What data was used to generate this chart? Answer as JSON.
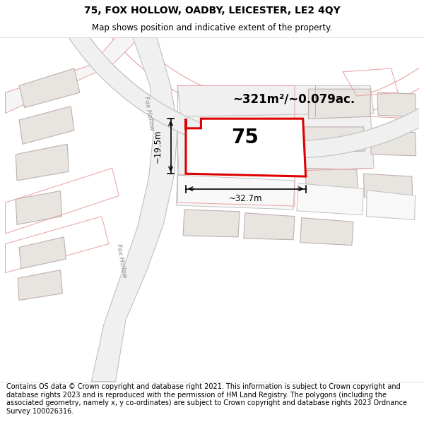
{
  "title_line1": "75, FOX HOLLOW, OADBY, LEICESTER, LE2 4QY",
  "title_line2": "Map shows position and indicative extent of the property.",
  "footer_text": "Contains OS data © Crown copyright and database right 2021. This information is subject to Crown copyright and database rights 2023 and is reproduced with the permission of HM Land Registry. The polygons (including the associated geometry, namely x, y co-ordinates) are subject to Crown copyright and database rights 2023 Ordnance Survey 100026316.",
  "map_bg": "#ffffff",
  "road_stroke": "#e8a0a0",
  "road_fill": "#fde8e8",
  "parcel_stroke": "#e8a0a0",
  "parcel_fill": "none",
  "bld_stroke": "#c0b0b0",
  "bld_fill": "#e8e4e0",
  "curved_road_stroke": "#c0c0c0",
  "curved_road_fill": "#ffffff",
  "highlight_color": "#dd0000",
  "highlight_fill": "#ffffff",
  "area_label": "~321m²/~0.079ac.",
  "plot_number": "75",
  "dim_width": "~32.7m",
  "dim_height": "~19.5m",
  "title_fontsize": 10,
  "subtitle_fontsize": 8.5,
  "footer_fontsize": 7,
  "label_fontsize": 12,
  "number_fontsize": 20,
  "dim_fontsize": 8.5
}
